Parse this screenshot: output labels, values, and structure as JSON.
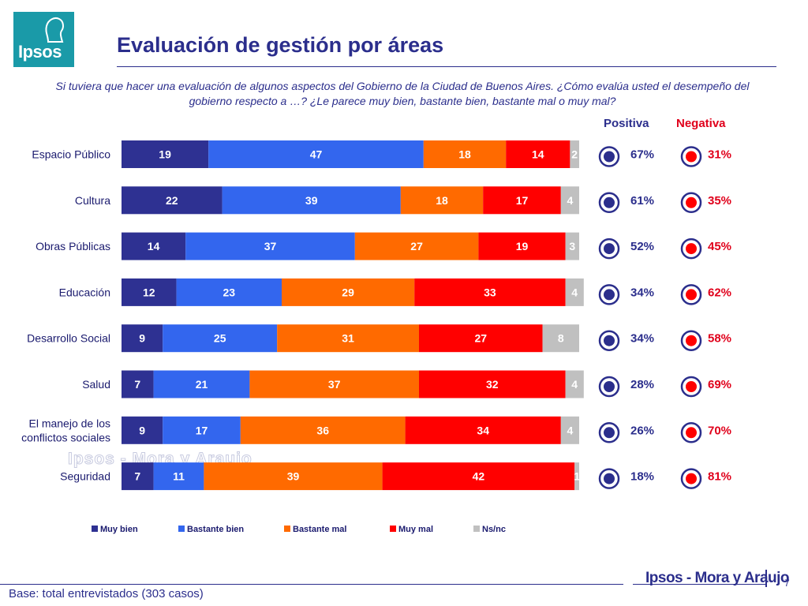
{
  "logo": {
    "text": "Ipsos"
  },
  "title": "Evaluación de gestión por áreas",
  "question": "Si tuviera que hacer una evaluación de algunos aspectos del Gobierno de la Ciudad de Buenos Aires. ¿Cómo evalúa usted el desempeño del gobierno respecto a …? ¿Le parece muy bien, bastante bien, bastante mal o muy mal?",
  "columns": {
    "positive": "Positiva",
    "negative": "Negativa"
  },
  "colors": {
    "muy_bien": "#2e3192",
    "bastante_bien": "#3366ee",
    "bastante_mal": "#ff6a00",
    "muy_mal": "#ff0000",
    "ns_nc": "#c0c0c0",
    "positive": "#2b2e8c",
    "negative": "#e0001b"
  },
  "chart_data": {
    "type": "bar",
    "orientation": "horizontal",
    "stacked": true,
    "categories": [
      "Espacio Público",
      "Cultura",
      "Obras Públicas",
      "Educación",
      "Desarrollo Social",
      "Salud",
      "El manejo de los conflictos sociales",
      "Seguridad"
    ],
    "series": [
      {
        "name": "Muy bien",
        "values": [
          19,
          22,
          14,
          12,
          9,
          7,
          9,
          7
        ]
      },
      {
        "name": "Bastante bien",
        "values": [
          47,
          39,
          37,
          23,
          25,
          21,
          17,
          11
        ]
      },
      {
        "name": "Bastante mal",
        "values": [
          18,
          18,
          27,
          29,
          31,
          37,
          36,
          39
        ]
      },
      {
        "name": "Muy mal",
        "values": [
          14,
          17,
          19,
          33,
          27,
          32,
          34,
          42
        ]
      },
      {
        "name": "Ns/nc",
        "values": [
          2,
          4,
          3,
          4,
          8,
          4,
          4,
          1
        ]
      }
    ],
    "positiva": [
      "67%",
      "61%",
      "52%",
      "34%",
      "34%",
      "28%",
      "26%",
      "18%"
    ],
    "negativa": [
      "31%",
      "35%",
      "45%",
      "62%",
      "58%",
      "69%",
      "70%",
      "81%"
    ],
    "legend_position": "bottom"
  },
  "watermark": "Ipsos - Mora y Araujo",
  "footer": {
    "brand": "Ipsos - Mora y Araujo",
    "page": "7",
    "base": "Base: total entrevistados (303 casos)"
  }
}
